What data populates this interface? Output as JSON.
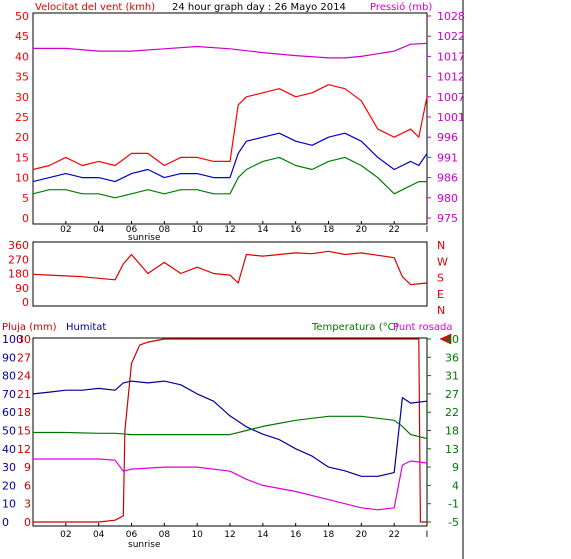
{
  "colors": {
    "wind_gust": "#ff0000",
    "wind_avg": "#0000cc",
    "wind_min": "#008000",
    "pressure": "#cc00cc",
    "wind_dir": "#dd0000",
    "rain": "#cc0000",
    "humidity": "#000099",
    "temperature": "#007700",
    "dewpoint": "#dd00dd",
    "frame": "#000000",
    "grid": "#cfcfcf",
    "marker": "#ff0000"
  },
  "header": {
    "wind_title": "Velocitat del vent (kmh)",
    "main_title": "24 hour graph day : 26 Mayo 2014",
    "pressure_title": "Pressió (mb)"
  },
  "x_axis": {
    "ticks": [
      "02",
      "04",
      "06",
      "08",
      "10",
      "12",
      "14",
      "16",
      "18",
      "20",
      "22"
    ],
    "end_tick": "I",
    "sunrise_label": "sunrise"
  },
  "compass_labels": [
    "N",
    "W",
    "S",
    "E",
    "N"
  ],
  "bottom_headers": {
    "rain": "Pluja (mm)",
    "humidity": "Humitat",
    "temperature": "Temperatura (°C)",
    "dewpoint": "Punt rosada"
  },
  "chart_data": [
    {
      "type": "line",
      "title": "24 hour graph day : 26 Mayo 2014",
      "x_range_hours": [
        0,
        24
      ],
      "y_left": {
        "label": "Velocitat del vent (kmh)",
        "ticks": [
          "50",
          "45",
          "40",
          "35",
          "30",
          "25",
          "20",
          "15",
          "10",
          "5",
          "0"
        ],
        "range": [
          0,
          50
        ]
      },
      "y_right": {
        "label": "Pressió (mb)",
        "ticks": [
          "1028",
          "1022",
          "1017",
          "1012",
          "1007",
          "1001",
          "996",
          "991",
          "986",
          "980",
          "975"
        ],
        "range": [
          975,
          1028
        ]
      },
      "grid": false,
      "series": [
        {
          "key": "wind_gust",
          "axis": "left",
          "x": [
            0,
            1,
            2,
            3,
            4,
            5,
            6,
            7,
            8,
            9,
            10,
            11,
            12,
            12.5,
            13,
            14,
            15,
            16,
            17,
            18,
            19,
            20,
            21,
            22,
            23,
            23.5,
            24
          ],
          "values": [
            12,
            13,
            15,
            13,
            14,
            13,
            16,
            16,
            13,
            15,
            15,
            14,
            14,
            28,
            30,
            31,
            32,
            30,
            31,
            33,
            32,
            29,
            22,
            20,
            22,
            20,
            30
          ]
        },
        {
          "key": "wind_avg",
          "axis": "left",
          "x": [
            0,
            1,
            2,
            3,
            4,
            5,
            6,
            7,
            8,
            9,
            10,
            11,
            12,
            12.5,
            13,
            14,
            15,
            16,
            17,
            18,
            19,
            20,
            21,
            22,
            23,
            23.5,
            24
          ],
          "values": [
            9,
            10,
            11,
            10,
            10,
            9,
            11,
            12,
            10,
            11,
            11,
            10,
            10,
            16,
            19,
            20,
            21,
            19,
            18,
            20,
            21,
            19,
            15,
            12,
            14,
            13,
            16
          ]
        },
        {
          "key": "wind_min",
          "axis": "left",
          "x": [
            0,
            1,
            2,
            3,
            4,
            5,
            6,
            7,
            8,
            9,
            10,
            11,
            12,
            12.5,
            13,
            14,
            15,
            16,
            17,
            18,
            19,
            20,
            21,
            22,
            23,
            23.5,
            24
          ],
          "values": [
            6,
            7,
            7,
            6,
            6,
            5,
            6,
            7,
            6,
            7,
            7,
            6,
            6,
            10,
            12,
            14,
            15,
            13,
            12,
            14,
            15,
            13,
            10,
            6,
            8,
            9,
            9
          ]
        },
        {
          "key": "pressure",
          "axis": "right",
          "x": [
            0,
            2,
            4,
            6,
            8,
            10,
            12,
            14,
            16,
            18,
            19,
            20,
            22,
            23,
            24
          ],
          "values": [
            1019.5,
            1019.5,
            1018.8,
            1018.8,
            1019.4,
            1020.0,
            1019.4,
            1018.4,
            1017.6,
            1017.0,
            1017.0,
            1017.4,
            1018.8,
            1020.6,
            1020.8
          ]
        }
      ]
    },
    {
      "type": "line",
      "x_range_hours": [
        0,
        24
      ],
      "y_left": {
        "label": "",
        "ticks": [
          "360",
          "270",
          "180",
          "90",
          "0"
        ],
        "range": [
          0,
          360
        ]
      },
      "grid": false,
      "series": [
        {
          "key": "wind_dir",
          "axis": "left",
          "x": [
            0,
            1,
            2,
            3,
            4,
            5,
            5.5,
            6,
            7,
            8,
            9,
            10,
            11,
            12,
            12.5,
            13,
            14,
            15,
            16,
            17,
            18,
            19,
            20,
            21,
            22,
            22.5,
            23,
            24
          ],
          "values": [
            175,
            170,
            165,
            160,
            150,
            140,
            240,
            300,
            180,
            250,
            180,
            220,
            180,
            170,
            120,
            300,
            290,
            300,
            310,
            305,
            320,
            300,
            310,
            295,
            280,
            160,
            110,
            120
          ]
        }
      ]
    },
    {
      "type": "line",
      "x_range_hours": [
        0,
        24
      ],
      "y_left": [
        {
          "label": "Pluja (mm)",
          "ticks": [
            "30",
            "27",
            "24",
            "21",
            "18",
            "15",
            "12",
            "9",
            "6",
            "3",
            "0"
          ],
          "range": [
            0,
            30
          ]
        },
        {
          "label": "Humitat",
          "ticks": [
            "100",
            "90",
            "80",
            "70",
            "60",
            "50",
            "40",
            "30",
            "20",
            "10",
            "0"
          ],
          "range": [
            0,
            100
          ]
        }
      ],
      "y_right": {
        "label": "Temperatura (°C)",
        "ticks": [
          "40",
          "36",
          "31",
          "27",
          "22",
          "18",
          "13",
          "9",
          "4",
          "-1",
          "-5"
        ],
        "range": [
          -5,
          40
        ]
      },
      "grid": false,
      "series": [
        {
          "key": "rain",
          "axis": "rain",
          "x": [
            0,
            4,
            5,
            5.5,
            5.6,
            6,
            6.5,
            7,
            8,
            9,
            10,
            12,
            14,
            16,
            18,
            20,
            22,
            23.5,
            23.6,
            24
          ],
          "values": [
            0,
            0,
            0.3,
            1,
            15,
            26,
            29,
            29.5,
            30,
            30,
            30,
            30,
            30,
            30,
            30,
            30,
            30,
            30,
            0,
            0
          ]
        },
        {
          "key": "humidity",
          "axis": "humidity",
          "x": [
            0,
            1,
            2,
            3,
            4,
            5,
            5.5,
            6,
            7,
            8,
            9,
            10,
            11,
            12,
            13,
            14,
            15,
            16,
            17,
            18,
            19,
            20,
            21,
            22,
            22.5,
            23,
            24
          ],
          "values": [
            70,
            71,
            72,
            72,
            73,
            72,
            76,
            77,
            76,
            77,
            75,
            70,
            66,
            58,
            52,
            48,
            45,
            40,
            36,
            30,
            28,
            25,
            25,
            27,
            68,
            65,
            66
          ]
        },
        {
          "key": "temperature",
          "axis": "right",
          "x": [
            0,
            2,
            4,
            5,
            6,
            8,
            10,
            12,
            13,
            14,
            16,
            18,
            20,
            21,
            22,
            22.5,
            23,
            24
          ],
          "values": [
            17,
            17,
            16.8,
            16.8,
            16.5,
            16.5,
            16.5,
            16.5,
            17.5,
            18.5,
            20,
            21,
            21,
            20.5,
            20,
            18.5,
            16.5,
            15.5
          ]
        },
        {
          "key": "dewpoint",
          "axis": "right",
          "x": [
            0,
            2,
            4,
            5,
            5.5,
            6,
            8,
            10,
            12,
            13,
            14,
            16,
            18,
            20,
            21,
            22,
            22.5,
            23,
            24
          ],
          "values": [
            10.5,
            10.5,
            10.5,
            10.2,
            7.5,
            8,
            8.5,
            8.5,
            7.5,
            5.5,
            4,
            2.5,
            0.5,
            -1.5,
            -2,
            -1.5,
            9,
            10,
            9.5
          ]
        }
      ]
    }
  ]
}
